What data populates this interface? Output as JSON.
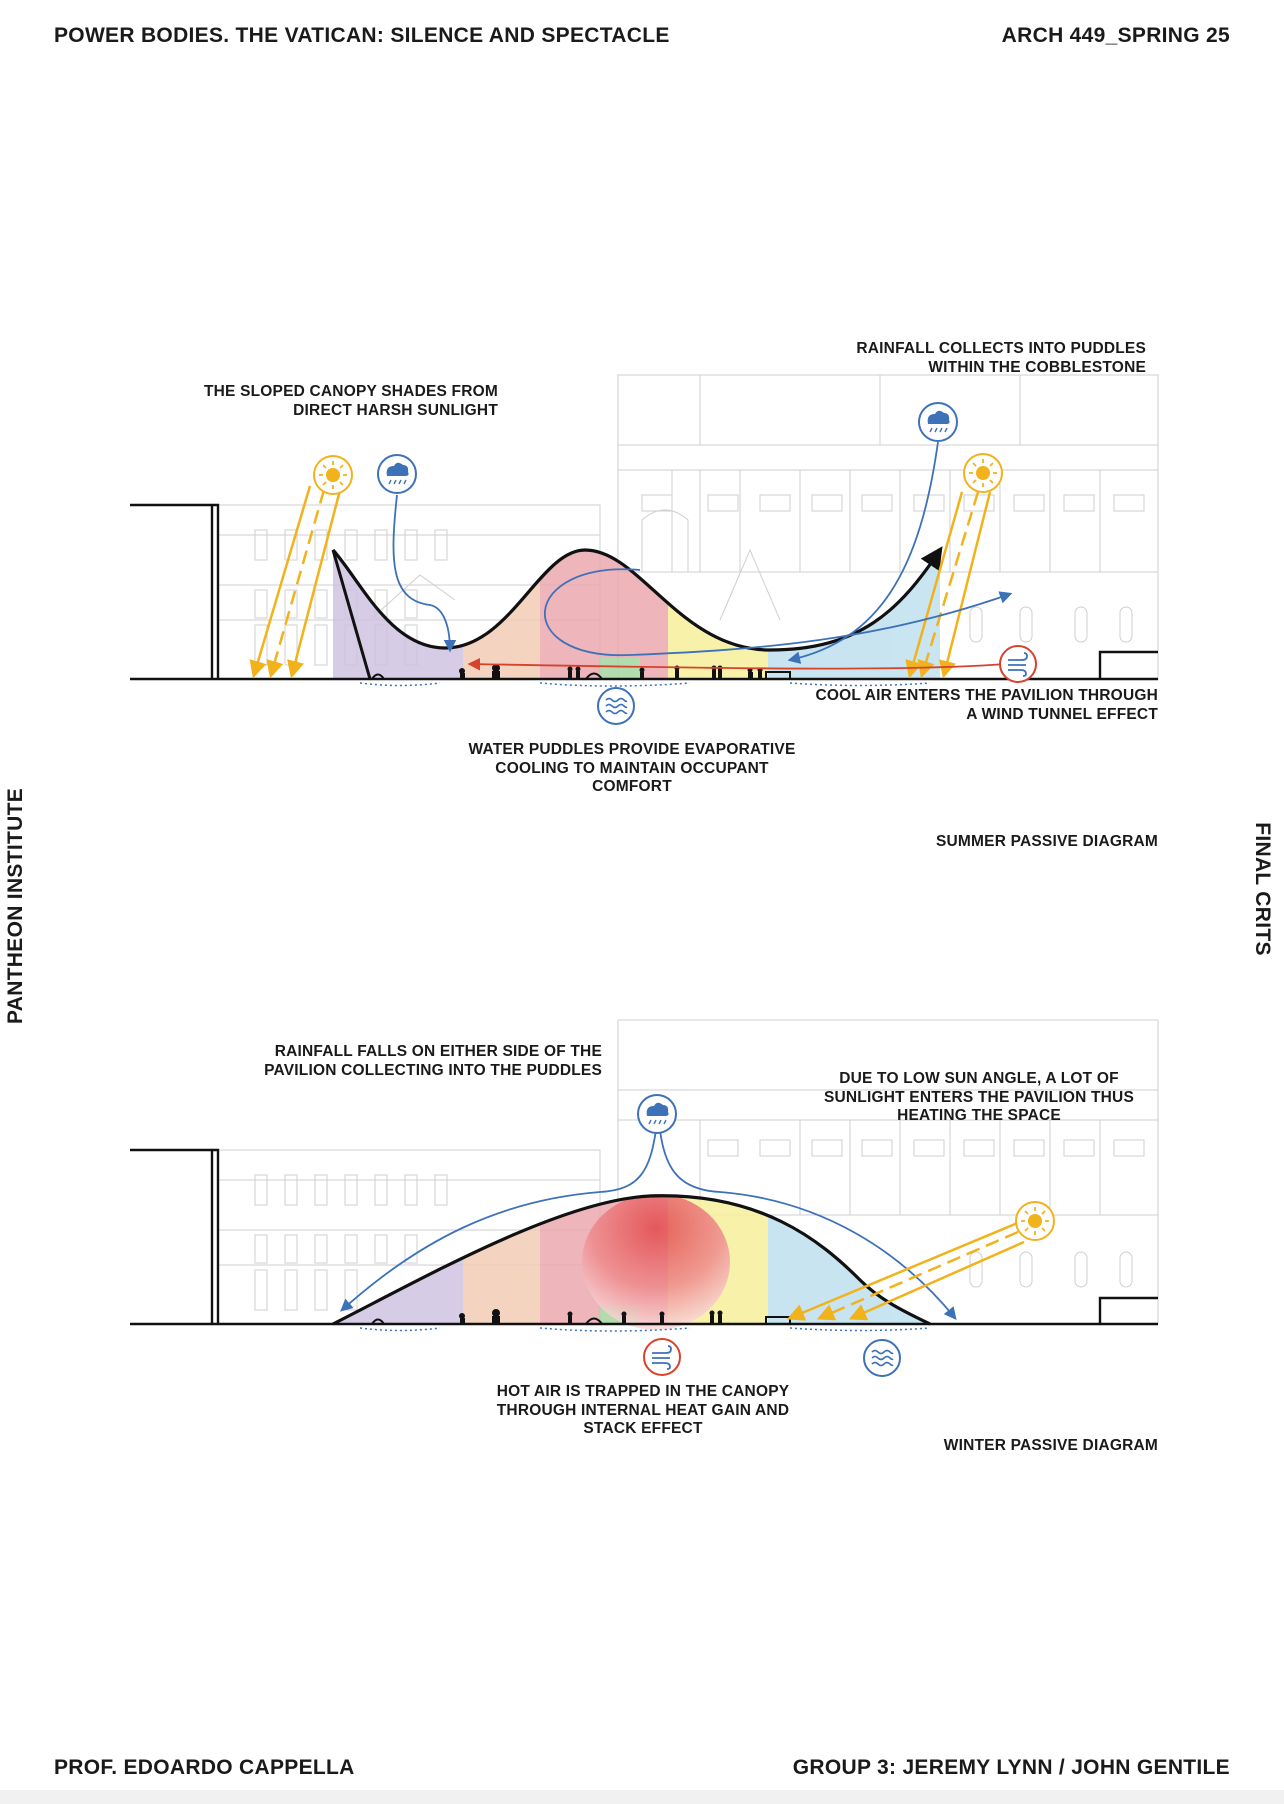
{
  "header": {
    "title": "POWER BODIES. THE VATICAN: SILENCE AND SPECTACLE",
    "course": "ARCH 449_SPRING 25"
  },
  "side": {
    "left": "PANTHEON INSTITUTE",
    "right": "FINAL CRITS"
  },
  "footer": {
    "professor": "PROF. EDOARDO CAPPELLA",
    "group": "GROUP 3: JEREMY LYNN / JOHN GENTILE"
  },
  "summer": {
    "caption": "SUMMER PASSIVE DIAGRAM",
    "canopy_note": [
      "THE SLOPED CANOPY SHADES FROM",
      "DIRECT HARSH SUNLIGHT"
    ],
    "rain_note": [
      "RAINFALL COLLECTS INTO PUDDLES",
      "WITHIN THE COBBLESTONE"
    ],
    "wind_note": [
      "COOL AIR ENTERS THE PAVILION THROUGH",
      "A WIND TUNNEL EFFECT"
    ],
    "water_note": [
      "WATER PUDDLES PROVIDE EVAPORATIVE",
      "COOLING TO MAINTAIN OCCUPANT",
      "COMFORT"
    ]
  },
  "winter": {
    "caption": "WINTER PASSIVE DIAGRAM",
    "rain_note": [
      "RAINFALL FALLS ON EITHER SIDE OF THE",
      "PAVILION COLLECTING INTO THE PUDDLES"
    ],
    "sun_note": [
      "DUE TO LOW SUN ANGLE, A LOT OF",
      "SUNLIGHT ENTERS THE PAVILION THUS",
      "HEATING THE SPACE"
    ],
    "heat_note": [
      "HOT AIR IS TRAPPED IN THE CANOPY",
      "THROUGH INTERNAL HEAT GAIN AND",
      "STACK EFFECT"
    ]
  },
  "icons": [
    "sun-icon",
    "rain-cloud-icon",
    "wind-icon",
    "water-waves-icon"
  ],
  "colors": {
    "sun": "#f2b21c",
    "rain": "#3d72b8",
    "wind": "#d8422d",
    "zone_purple": "#cfc3e2",
    "zone_peach": "#f3cdb5",
    "zone_pink": "#eca9b0",
    "zone_yellow": "#f6ef9c",
    "zone_blue": "#bfe0ef",
    "zone_green": "#a6d7a0"
  }
}
